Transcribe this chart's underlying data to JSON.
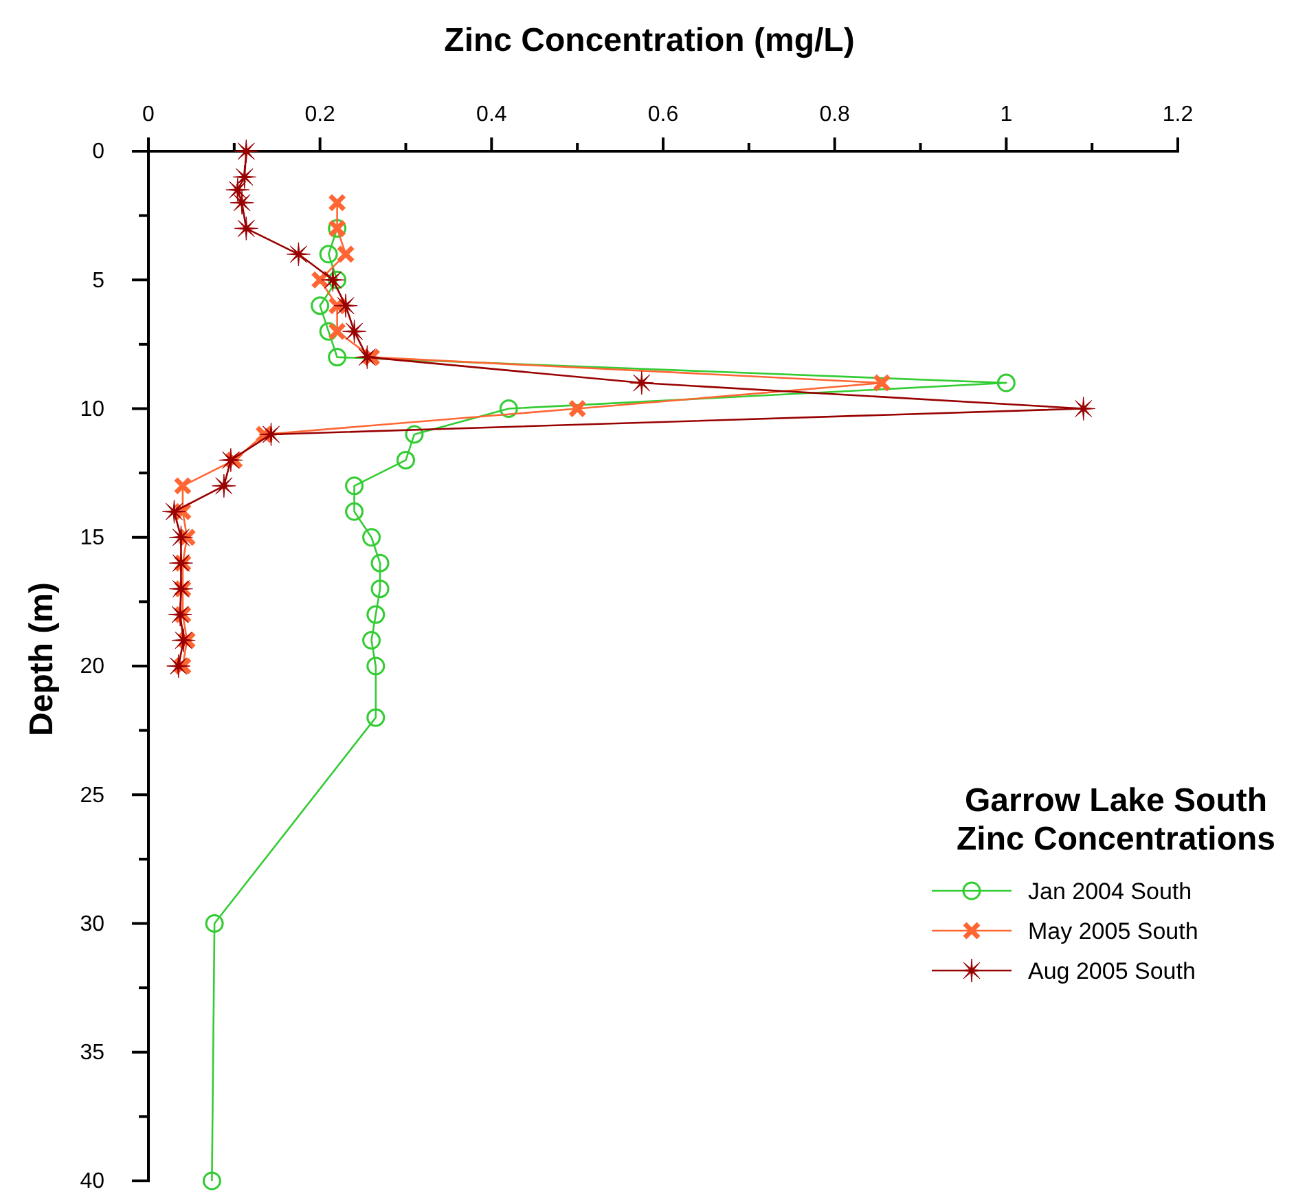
{
  "chart_data": {
    "type": "line",
    "xlabel": "Zinc Concentration (mg/L)",
    "ylabel": "Depth (m)",
    "legend_title": "Garrow Lake South\nZinc Concentrations",
    "legend": "right",
    "xlim": [
      0,
      1.2
    ],
    "xticks": [
      0,
      {
        "value": 0.1,
        "label": null
      },
      0.2,
      {
        "value": 0.3,
        "label": null
      },
      0.4,
      {
        "value": 0.5,
        "label": null
      },
      0.6,
      {
        "value": 0.7,
        "label": null
      },
      0.8,
      {
        "value": 0.9,
        "label": null
      },
      1,
      {
        "value": 1.1,
        "label": null
      },
      1.2
    ],
    "ylim": [
      40,
      0
    ],
    "yticks": [
      0,
      {
        "value": 2.5,
        "label": null
      },
      5,
      {
        "value": 7.5,
        "label": null
      },
      10,
      {
        "value": 12.5,
        "label": null
      },
      15,
      {
        "value": 17.5,
        "label": null
      },
      20,
      {
        "value": 22.5,
        "label": null
      },
      25,
      {
        "value": 27.5,
        "label": null
      },
      30,
      {
        "value": 32.5,
        "label": null
      },
      35,
      {
        "value": 37.5,
        "label": null
      },
      40
    ],
    "grid": false,
    "series": [
      {
        "name": "Jan 2004 South",
        "color": "#33cc33",
        "marker": "circle",
        "x": [
          0.22,
          0.21,
          0.22,
          0.2,
          0.21,
          0.22,
          1.0,
          0.42,
          0.31,
          0.3,
          0.24,
          0.24,
          0.26,
          0.27,
          0.27,
          0.265,
          0.26,
          0.265,
          0.265,
          0.077,
          0.074
        ],
        "values": [
          3,
          4,
          5,
          6,
          7,
          8,
          9,
          10,
          11,
          12,
          13,
          14,
          15,
          16,
          17,
          18,
          19,
          20,
          22,
          30,
          40
        ]
      },
      {
        "name": "May 2005 South",
        "color": "#ff6633",
        "marker": "cross",
        "x": [
          0.22,
          0.22,
          0.23,
          0.2,
          0.22,
          0.22,
          0.26,
          0.855,
          0.5,
          0.135,
          0.1,
          0.04,
          0.04,
          0.045,
          0.04,
          0.04,
          0.04,
          0.045,
          0.04
        ],
        "values": [
          2,
          3,
          4,
          5,
          6,
          7,
          8,
          9,
          10,
          11,
          12,
          13,
          14,
          15,
          16,
          17,
          18,
          19,
          20
        ]
      },
      {
        "name": "Aug 2005 South",
        "color": "#990000",
        "marker": "star",
        "x": [
          0.114,
          0.112,
          0.104,
          0.109,
          0.114,
          0.175,
          0.215,
          0.23,
          0.24,
          0.255,
          0.575,
          1.09,
          0.143,
          0.096,
          0.088,
          0.03,
          0.038,
          0.038,
          0.038,
          0.037,
          0.041,
          0.035
        ],
        "values": [
          0,
          1,
          1.5,
          2,
          3,
          4,
          5,
          6,
          7,
          8,
          9,
          10,
          11,
          12,
          13,
          14,
          15,
          16,
          17,
          18,
          19,
          20
        ]
      }
    ]
  }
}
